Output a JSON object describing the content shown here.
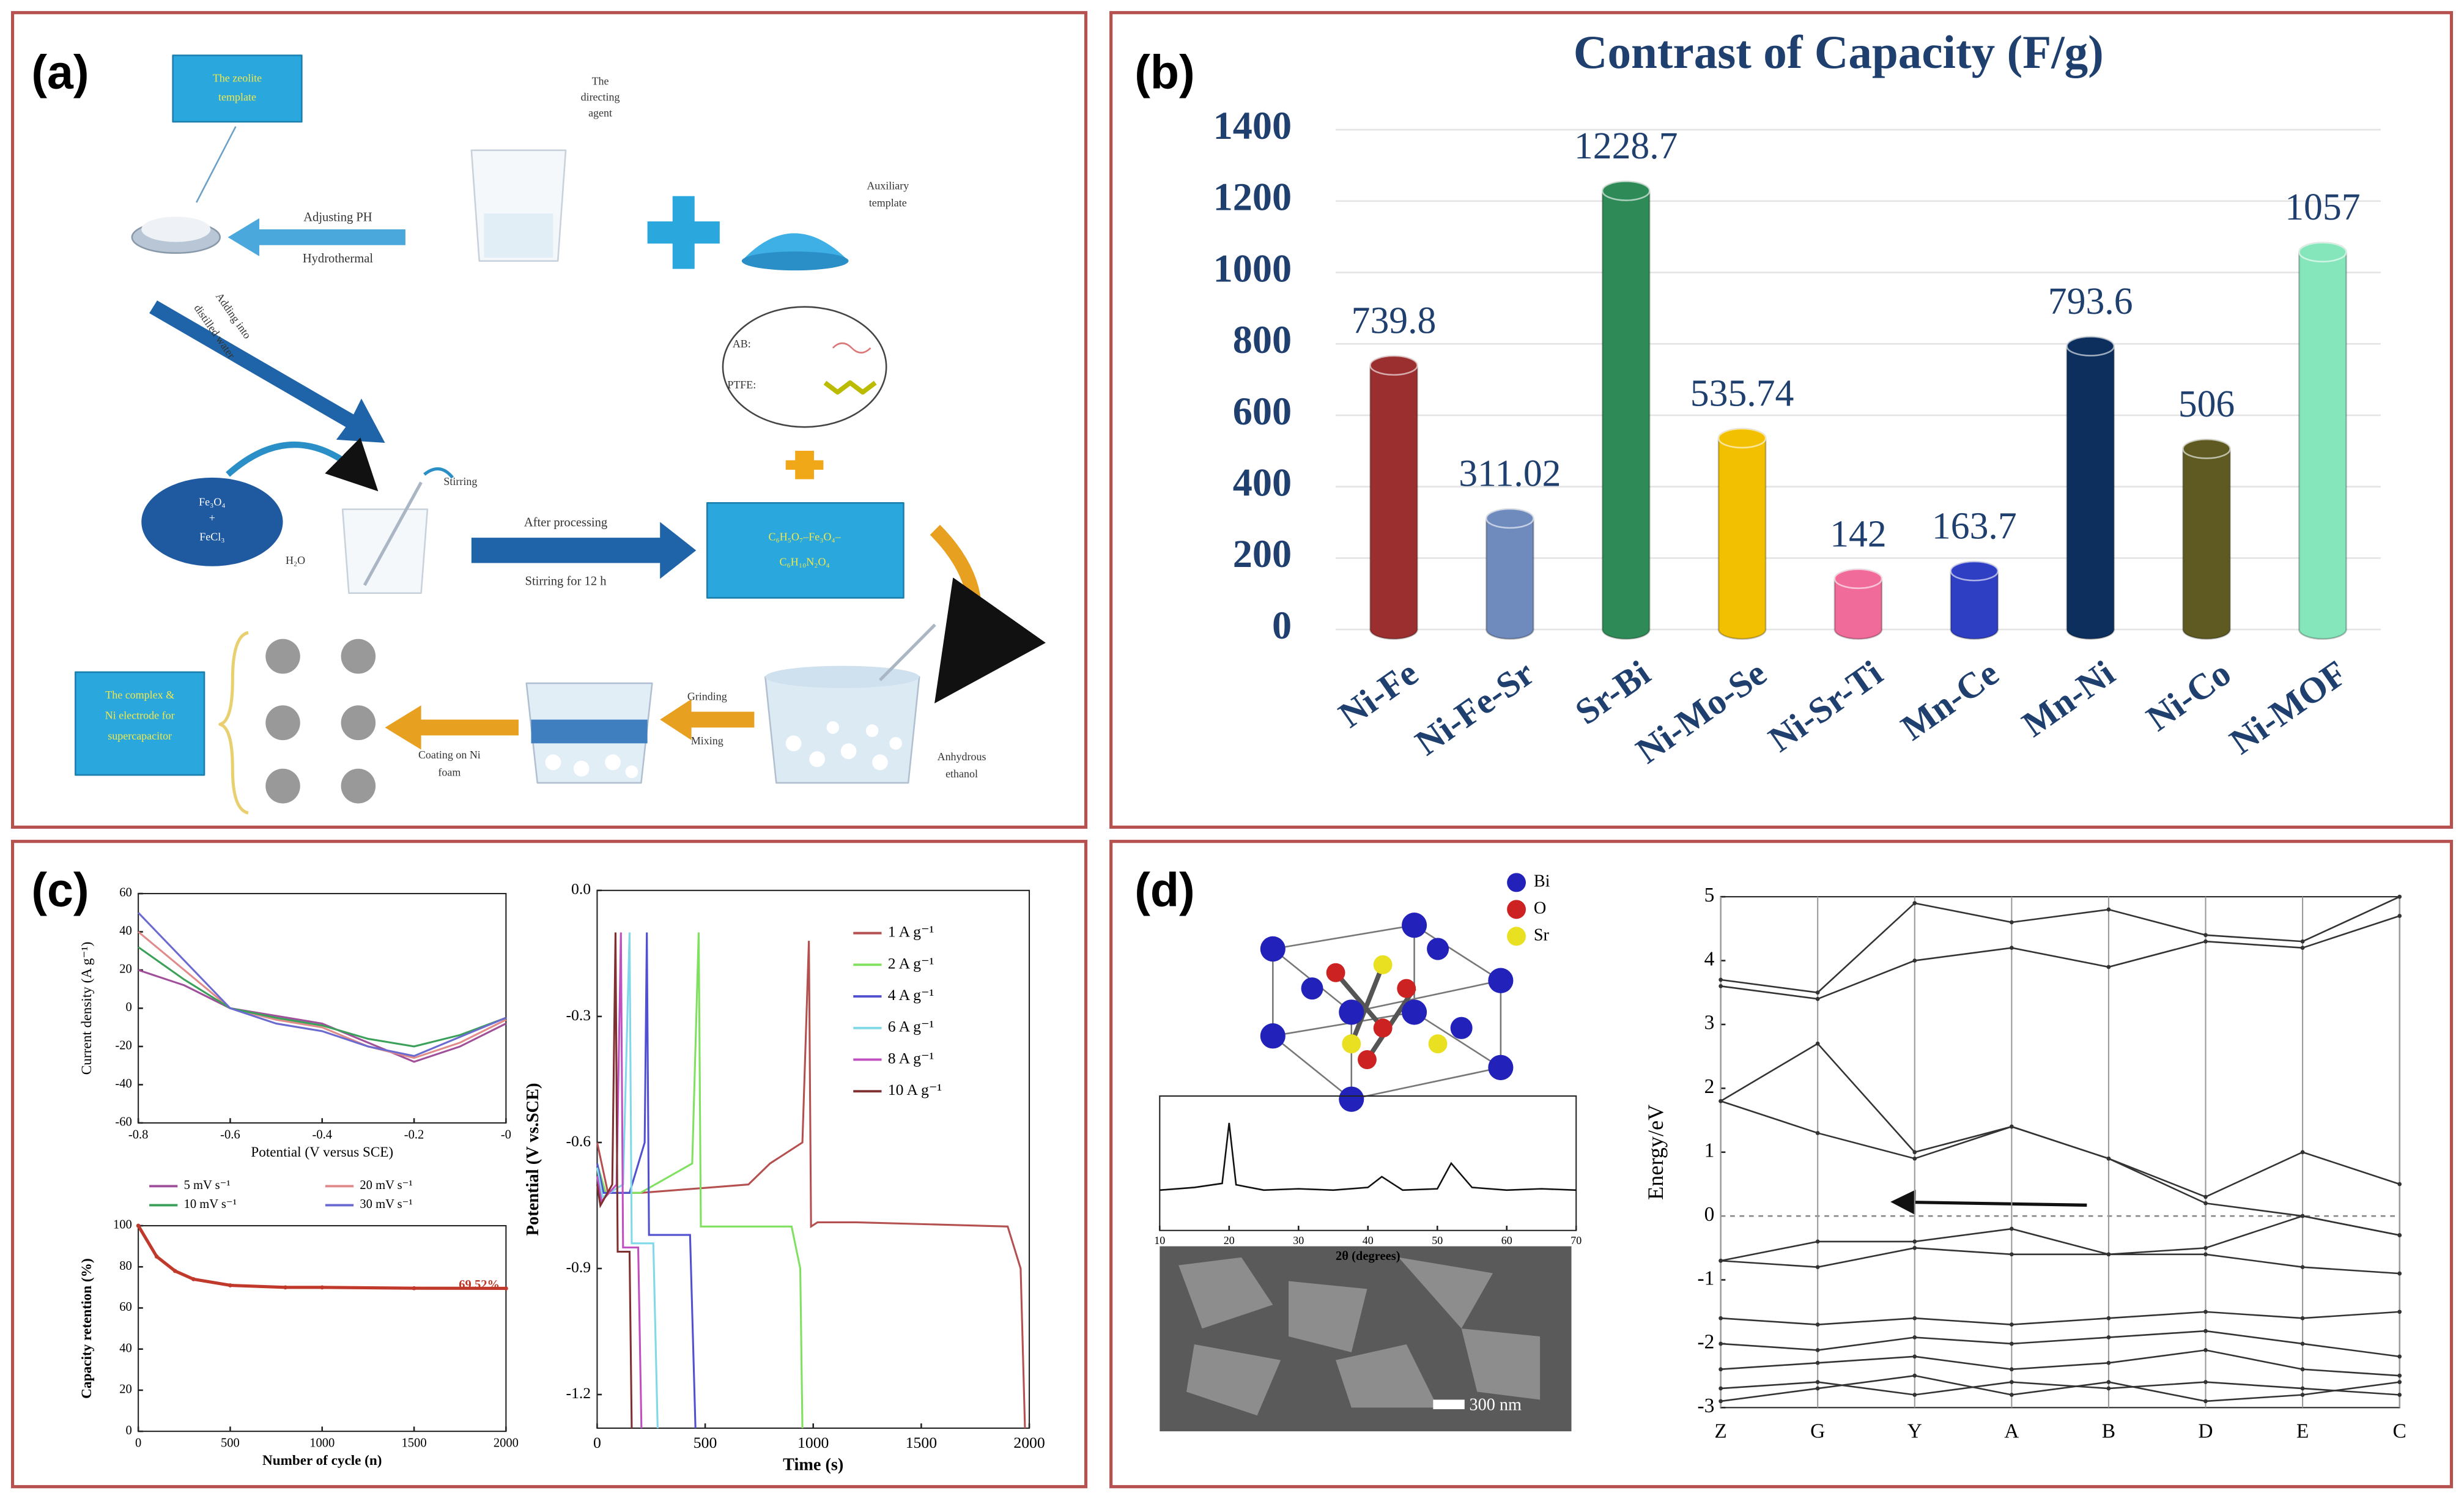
{
  "figure": {
    "panel_labels": [
      "(a)",
      "(b)",
      "(c)",
      "(d)"
    ],
    "diagram_a": {
      "texts": [
        "The zeolite",
        "template",
        "The",
        "directing",
        "agent",
        "Auxiliary",
        "template",
        "Adjusting PH",
        "Hydrothermal",
        "Adding into",
        "distilled water",
        "Fe₃O₄",
        "+",
        "FeCl₃",
        "Stirring",
        "H₂O",
        "After processing",
        "Stirring for 12 h",
        "AB:",
        "PTFE:",
        "C₆H₅O₇–Fe₃O₄–",
        "C₆H₁₀N₂O₄",
        "Grinding",
        "Mixing",
        "Anhydrous",
        "ethanol",
        "Coating on Ni",
        "foam",
        "The complex &",
        "Ni electrode for",
        "supercapacitor"
      ]
    },
    "legend_d": [
      "Bi",
      "O",
      "Sr"
    ],
    "sem_scale": "300 nm"
  },
  "chart_data": [
    {
      "type": "bar",
      "title": "Contrast of Capacity (F/g)",
      "categories": [
        "Ni-Fe",
        "Ni-Fe-Sr",
        "Sr-Bi",
        "Ni-Mo-Se",
        "Ni-Sr-Ti",
        "Mn-Ce",
        "Mn-Ni",
        "Ni-Co",
        "Ni-MOF"
      ],
      "values": [
        739.8,
        311.02,
        1228.7,
        535.74,
        142,
        163.7,
        793.6,
        506,
        1057
      ],
      "colors": [
        "#9b2f2f",
        "#6f8bbd",
        "#2e8b57",
        "#f2c000",
        "#f06a9a",
        "#2f3fc4",
        "#0d2f5e",
        "#5e5a22",
        "#86e6bb"
      ],
      "ylim": [
        0,
        1400
      ],
      "yticks": [
        0,
        200,
        400,
        600,
        800,
        1000,
        1200,
        1400
      ]
    },
    {
      "type": "line",
      "x_label": "Potential (V versus SCE)",
      "y_label": "Current density (A g⁻¹)",
      "x": [
        -0.8,
        -0.7,
        -0.6,
        -0.5,
        -0.4,
        -0.3,
        -0.2,
        -0.1,
        0
      ],
      "series": [
        {
          "name": "5 mV s⁻¹",
          "color": "#a0509a",
          "values": [
            20,
            12,
            0,
            -4,
            -8,
            -18,
            -28,
            -20,
            -8
          ]
        },
        {
          "name": "20 mV s⁻¹",
          "color": "#e08a8a",
          "values": [
            40,
            20,
            0,
            -6,
            -10,
            -20,
            -26,
            -18,
            -6
          ]
        },
        {
          "name": "10 mV s⁻¹",
          "color": "#3aa05a",
          "values": [
            32,
            15,
            0,
            -5,
            -9,
            -16,
            -20,
            -14,
            -5
          ]
        },
        {
          "name": "30 mV s⁻¹",
          "color": "#6a6ad0",
          "values": [
            50,
            25,
            0,
            -8,
            -12,
            -20,
            -25,
            -15,
            -5
          ]
        }
      ],
      "xlim": [
        -0.8,
        0
      ],
      "xticks": [
        -0.8,
        -0.6,
        -0.4,
        -0.2,
        {
          "value": 0,
          "label": "-0"
        }
      ],
      "ylim": [
        -60,
        60
      ],
      "yticks": [
        -60,
        -40,
        -20,
        0,
        20,
        40,
        60
      ]
    },
    {
      "type": "line",
      "x_label": "Number of cycle (n)",
      "y_label": "Capacity retention (%)",
      "annotation": "69.52%",
      "x": [
        0,
        100,
        200,
        300,
        500,
        800,
        1000,
        1500,
        2000
      ],
      "series": [
        {
          "color": "#c0392b",
          "values": [
            100,
            85,
            78,
            74,
            71,
            70,
            70,
            69.6,
            69.52
          ]
        }
      ],
      "xlim": [
        0,
        2000
      ],
      "xticks": [
        0,
        500,
        1000,
        1500,
        2000
      ],
      "ylim": [
        0,
        100
      ],
      "yticks": [
        0,
        20,
        40,
        60,
        80,
        100
      ]
    },
    {
      "type": "line",
      "x_label": "Time (s)",
      "y_label": "Potential (V vs.SCE)",
      "series": [
        {
          "name": "1 A g⁻¹",
          "color": "#b55050",
          "x": [
            0,
            50,
            200,
            700,
            800,
            950,
            980,
            990,
            1020,
            1200,
            1900,
            1960,
            1980
          ],
          "values": [
            -0.6,
            -0.72,
            -0.72,
            -0.7,
            -0.65,
            -0.6,
            -0.12,
            -0.8,
            -0.79,
            -0.79,
            -0.8,
            -0.9,
            -1.28
          ]
        },
        {
          "name": "2 A g⁻¹",
          "color": "#80e060",
          "x": [
            0,
            40,
            200,
            440,
            470,
            480,
            500,
            900,
            940,
            950
          ],
          "values": [
            -0.65,
            -0.72,
            -0.72,
            -0.65,
            -0.1,
            -0.8,
            -0.8,
            -0.8,
            -0.9,
            -1.28
          ]
        },
        {
          "name": "4 A g⁻¹",
          "color": "#5050d0",
          "x": [
            0,
            30,
            150,
            220,
            230,
            240,
            430,
            455
          ],
          "values": [
            -0.65,
            -0.72,
            -0.72,
            -0.6,
            -0.1,
            -0.82,
            -0.82,
            -1.28
          ]
        },
        {
          "name": "6 A g⁻¹",
          "color": "#80d8e8",
          "x": [
            0,
            25,
            120,
            150,
            160,
            260,
            280
          ],
          "values": [
            -0.66,
            -0.73,
            -0.7,
            -0.1,
            -0.84,
            -0.84,
            -1.28
          ]
        },
        {
          "name": "8 A g⁻¹",
          "color": "#c050c0",
          "x": [
            0,
            20,
            90,
            110,
            120,
            190,
            205
          ],
          "values": [
            -0.68,
            -0.74,
            -0.7,
            -0.1,
            -0.85,
            -0.85,
            -1.28
          ]
        },
        {
          "name": "10 A g⁻¹",
          "color": "#803030",
          "x": [
            0,
            15,
            70,
            85,
            95,
            150,
            160
          ],
          "values": [
            -0.7,
            -0.75,
            -0.7,
            -0.1,
            -0.86,
            -0.86,
            -1.28
          ]
        }
      ],
      "xlim": [
        0,
        2000
      ],
      "xticks": [
        0,
        500,
        1000,
        1500,
        2000
      ],
      "ylim": [
        -1.28,
        0
      ],
      "yticks": [
        {
          "value": 0,
          "label": "0.0"
        },
        -0.3,
        -0.6,
        -0.9,
        -1.2
      ]
    },
    {
      "type": "line",
      "x_label": "2θ (degrees)",
      "x": [
        10,
        15,
        19,
        20,
        21,
        25,
        30,
        35,
        40,
        42,
        45,
        50,
        52,
        55,
        60,
        65,
        70
      ],
      "series": [
        {
          "color": "#111111",
          "values": [
            3,
            3.2,
            3.5,
            8,
            3.4,
            3,
            3.1,
            3,
            3.2,
            4,
            3,
            3.1,
            5,
            3.2,
            3,
            3.1,
            3
          ]
        }
      ],
      "xlim": [
        10,
        70
      ],
      "xticks": [
        10,
        20,
        30,
        40,
        50,
        60,
        70
      ],
      "ylim": [
        0,
        10
      ]
    },
    {
      "type": "line",
      "y_label": "Energy/eV",
      "categories": [
        "Z",
        "G",
        "Y",
        "A",
        "B",
        "D",
        "E",
        "C"
      ],
      "series": [
        {
          "color": "#333333",
          "values": [
            3.6,
            3.4,
            4.0,
            4.2,
            3.9,
            4.3,
            4.2,
            4.7
          ]
        },
        {
          "color": "#333333",
          "values": [
            3.7,
            3.5,
            4.9,
            4.6,
            4.8,
            4.4,
            4.3,
            5
          ]
        },
        {
          "color": "#333333",
          "values": [
            1.8,
            2.7,
            1.0,
            1.4,
            0.9,
            0.3,
            1.0,
            0.5
          ]
        },
        {
          "color": "#333333",
          "values": [
            1.8,
            1.3,
            0.9,
            1.4,
            0.9,
            0.2,
            0,
            -0.3
          ]
        },
        {
          "color": "#333333",
          "values": [
            -0.7,
            -0.4,
            -0.4,
            -0.2,
            -0.6,
            -0.5,
            0,
            -0.3
          ]
        },
        {
          "color": "#333333",
          "values": [
            -0.7,
            -0.8,
            -0.5,
            -0.6,
            -0.6,
            -0.6,
            -0.8,
            -0.9
          ]
        },
        {
          "color": "#333333",
          "values": [
            -1.6,
            -1.7,
            -1.6,
            -1.7,
            -1.6,
            -1.5,
            -1.6,
            -1.5
          ]
        },
        {
          "color": "#333333",
          "values": [
            -2.0,
            -2.1,
            -1.9,
            -2.0,
            -1.9,
            -1.8,
            -2.0,
            -2.2
          ]
        },
        {
          "color": "#333333",
          "values": [
            -2.4,
            -2.3,
            -2.2,
            -2.4,
            -2.3,
            -2.1,
            -2.4,
            -2.5
          ]
        },
        {
          "color": "#333333",
          "values": [
            -2.7,
            -2.6,
            -2.8,
            -2.6,
            -2.7,
            -2.6,
            -2.7,
            -2.8
          ]
        },
        {
          "color": "#333333",
          "values": [
            -2.9,
            -2.7,
            -2.5,
            -2.8,
            -2.6,
            -2.9,
            -2.8,
            -2.6
          ]
        }
      ],
      "ylim": [
        -3,
        5
      ],
      "yticks": [
        -3,
        -2,
        -1,
        0,
        1,
        2,
        3,
        4,
        5
      ]
    }
  ]
}
